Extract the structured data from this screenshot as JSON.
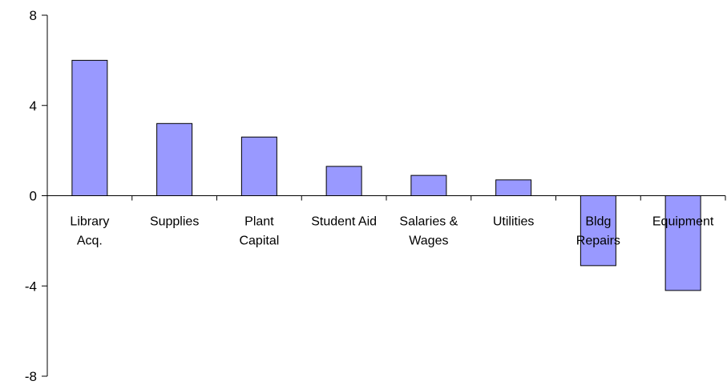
{
  "chart_data": {
    "type": "bar",
    "title": "",
    "xlabel": "",
    "ylabel": "",
    "ylim": [
      -8,
      8
    ],
    "yticks": [
      "8",
      "4",
      "0",
      "-4",
      "-8"
    ],
    "ytick_values": [
      8,
      4,
      0,
      -4,
      -8
    ],
    "categories": [
      [
        "Library",
        "Acq."
      ],
      [
        "Supplies"
      ],
      [
        "Plant",
        "Capital"
      ],
      [
        "Student Aid"
      ],
      [
        "Salaries &",
        "Wages"
      ],
      [
        "Utilities"
      ],
      [
        "Bldg",
        "Repairs"
      ],
      [
        "Equipment"
      ]
    ],
    "values": [
      6.0,
      3.2,
      2.6,
      1.3,
      0.9,
      0.7,
      -3.1,
      -4.2
    ],
    "legend": "none",
    "grid": false,
    "bar_color": "#9999ff",
    "bar_stroke": "#000000"
  }
}
